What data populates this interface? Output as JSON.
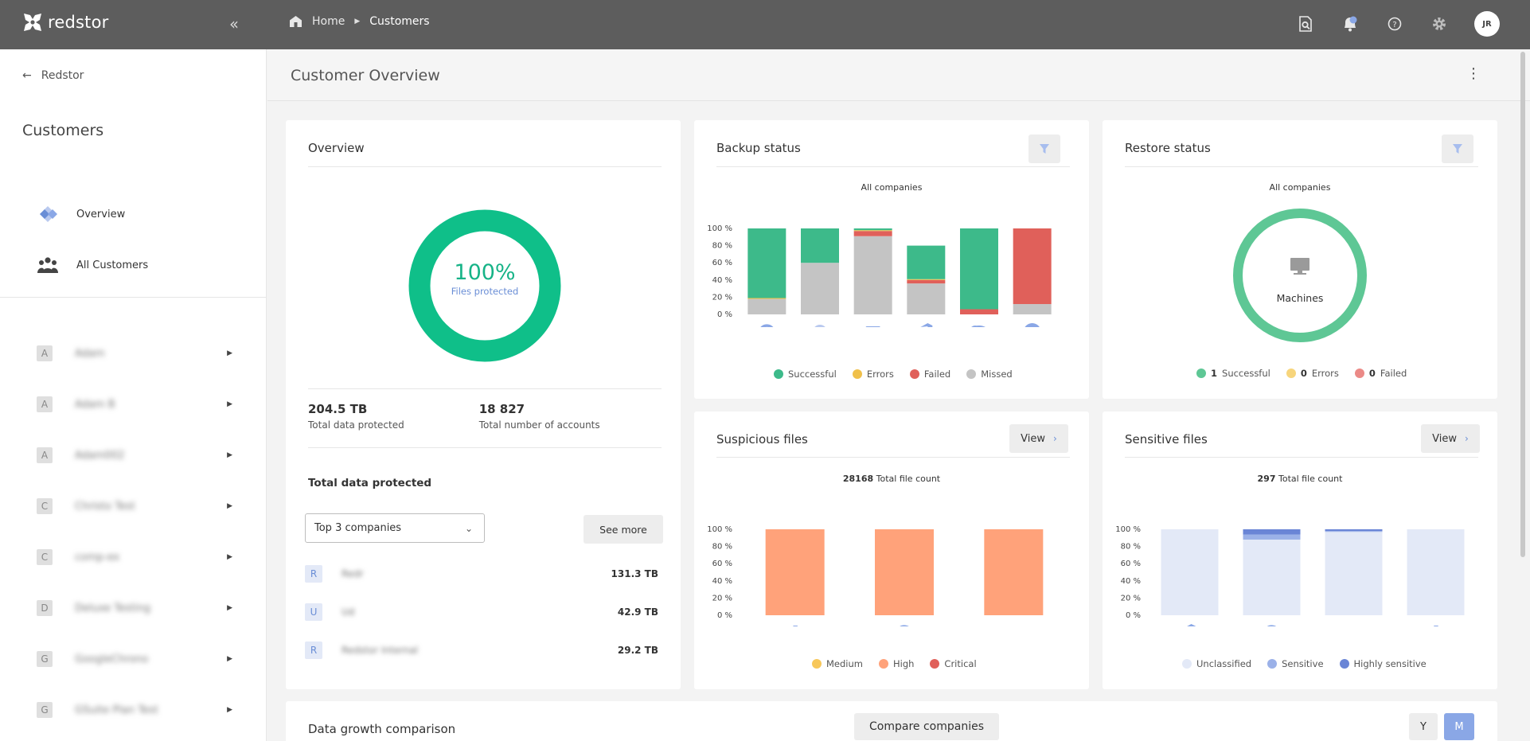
{
  "topbar": {
    "logo_text": "redstor",
    "breadcrumb": {
      "home": "Home",
      "current": "Customers"
    },
    "avatar_initials": "JR"
  },
  "sidebar": {
    "back_label": "Redstor",
    "title": "Customers",
    "nav": [
      {
        "label": "Overview",
        "icon": "overview-icon"
      },
      {
        "label": "All Customers",
        "icon": "people-icon"
      }
    ],
    "companies": [
      {
        "letter": "A",
        "name": "Adam"
      },
      {
        "letter": "A",
        "name": "Adam B"
      },
      {
        "letter": "A",
        "name": "Adam002"
      },
      {
        "letter": "C",
        "name": "Christo Test"
      },
      {
        "letter": "C",
        "name": "comp-ex"
      },
      {
        "letter": "D",
        "name": "Deluxe Testing"
      },
      {
        "letter": "G",
        "name": "GoogleChrono"
      },
      {
        "letter": "G",
        "name": "GSuite Plan Test"
      }
    ]
  },
  "page": {
    "title": "Customer Overview"
  },
  "overview": {
    "title": "Overview",
    "donut_percent": "100%",
    "donut_label": "Files protected",
    "total_data_value": "204.5 TB",
    "total_data_label": "Total data protected",
    "accounts_value": "18 827",
    "accounts_label": "Total number of accounts",
    "section_title": "Total data protected",
    "select_value": "Top 3 companies",
    "see_more": "See more",
    "top_companies": [
      {
        "letter": "R",
        "name": "Redr",
        "value": "131.3 TB"
      },
      {
        "letter": "U",
        "name": "Ud",
        "value": "42.9 TB"
      },
      {
        "letter": "R",
        "name": "Redstor Internal",
        "value": "29.2 TB"
      }
    ]
  },
  "backup": {
    "title": "Backup status",
    "subtitle": "All companies",
    "legend": [
      "Successful",
      "Errors",
      "Failed",
      "Missed"
    ]
  },
  "restore": {
    "title": "Restore status",
    "subtitle": "All companies",
    "donut_label": "Machines",
    "legend": [
      {
        "count": "1",
        "label": "Successful"
      },
      {
        "count": "0",
        "label": "Errors"
      },
      {
        "count": "0",
        "label": "Failed"
      }
    ]
  },
  "suspicious": {
    "title": "Suspicious files",
    "view": "View",
    "count": "28168",
    "count_label": "Total file count",
    "legend": [
      "Medium",
      "High",
      "Critical"
    ]
  },
  "sensitive": {
    "title": "Sensitive files",
    "view": "View",
    "count": "297",
    "count_label": "Total file count",
    "legend": [
      "Unclassified",
      "Sensitive",
      "Highly sensitive"
    ]
  },
  "growth": {
    "title": "Data growth comparison",
    "compare": "Compare companies",
    "y_btn": "Y",
    "m_btn": "M"
  },
  "colors": {
    "successful": "#3dba8a",
    "errors": "#f0c04a",
    "failed": "#e0605a",
    "missed": "#c4c4c4",
    "high": "#ffa27a",
    "unclassified": "#e3e9f7",
    "sensitive": "#9bb1e8",
    "highly_sensitive": "#6a85d6",
    "accent": "#8aa7e6"
  },
  "chart_data": [
    {
      "type": "bar",
      "title": "All companies",
      "categories": [
        "Google",
        "Exchange",
        "Machines",
        "Office 365",
        "Salesforce",
        "Xero"
      ],
      "ylim": [
        0,
        100
      ],
      "y_ticks": [
        "100 %",
        "80 %",
        "60 %",
        "40 %",
        "20 %",
        "0 %"
      ],
      "stacked": true,
      "series": [
        {
          "name": "Successful",
          "values": [
            81,
            40,
            2,
            39,
            94,
            0
          ]
        },
        {
          "name": "Errors",
          "values": [
            1,
            0,
            1,
            1,
            0,
            0
          ]
        },
        {
          "name": "Failed",
          "values": [
            0,
            0,
            6,
            4,
            6,
            88
          ]
        },
        {
          "name": "Missed",
          "values": [
            18,
            60,
            91,
            36,
            0,
            12
          ]
        }
      ]
    },
    {
      "type": "bar",
      "categories": [
        "Azure",
        "Google",
        "Machines"
      ],
      "ylim": [
        0,
        100
      ],
      "y_ticks": [
        "100 %",
        "80 %",
        "60 %",
        "40 %",
        "20 %",
        "0 %"
      ],
      "stacked": true,
      "series": [
        {
          "name": "Medium",
          "values": [
            0,
            0,
            0
          ]
        },
        {
          "name": "High",
          "values": [
            100,
            100,
            100
          ]
        },
        {
          "name": "Critical",
          "values": [
            0,
            0,
            0
          ]
        }
      ]
    },
    {
      "type": "bar",
      "categories": [
        "Office 365",
        "Google",
        "Machines",
        "Azure"
      ],
      "ylim": [
        0,
        100
      ],
      "y_ticks": [
        "100 %",
        "80 %",
        "60 %",
        "40 %",
        "20 %",
        "0 %"
      ],
      "stacked": true,
      "series": [
        {
          "name": "Unclassified",
          "values": [
            100,
            88,
            97,
            100
          ]
        },
        {
          "name": "Sensitive",
          "values": [
            0,
            6,
            1,
            0
          ]
        },
        {
          "name": "Highly sensitive",
          "values": [
            0,
            6,
            2,
            0
          ]
        }
      ]
    }
  ]
}
